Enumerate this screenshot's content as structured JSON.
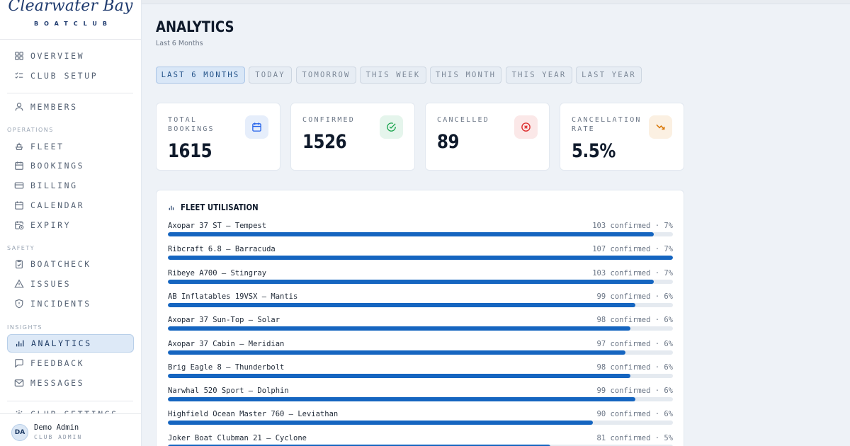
{
  "brand": {
    "title": "Clearwater Bay",
    "subtitle": "BOATCLUB"
  },
  "sidebar": {
    "top_items": [
      {
        "label": "OVERVIEW",
        "icon": "grid-icon"
      },
      {
        "label": "CLUB SETUP",
        "icon": "checklist-icon"
      }
    ],
    "members_item": {
      "label": "MEMBERS",
      "icon": "user-icon"
    },
    "sections": {
      "operations": "OPERATIONS",
      "safety": "SAFETY",
      "insights": "INSIGHTS"
    },
    "operations_items": [
      {
        "label": "FLEET",
        "icon": "ship-icon"
      },
      {
        "label": "BOOKINGS",
        "icon": "calendar-icon"
      },
      {
        "label": "BILLING",
        "icon": "card-icon"
      },
      {
        "label": "CALENDAR",
        "icon": "calendar-icon"
      },
      {
        "label": "EXPIRY",
        "icon": "calendar-clock-icon"
      }
    ],
    "safety_items": [
      {
        "label": "BOATCHECK",
        "icon": "clipboard-check-icon"
      },
      {
        "label": "ISSUES",
        "icon": "warning-triangle-icon"
      },
      {
        "label": "INCIDENTS",
        "icon": "shield-icon"
      }
    ],
    "insights_items": [
      {
        "label": "ANALYTICS",
        "icon": "bar-chart-icon",
        "active": true
      },
      {
        "label": "FEEDBACK",
        "icon": "message-square-icon"
      },
      {
        "label": "MESSAGES",
        "icon": "mail-icon"
      }
    ],
    "settings_item": {
      "label": "CLUB SETTINGS",
      "icon": "gear-icon"
    },
    "user": {
      "initials": "DA",
      "name": "Demo Admin",
      "role": "CLUB ADMIN"
    }
  },
  "header": {
    "title": "ANALYTICS",
    "subtitle": "Last 6 Months"
  },
  "filters": [
    {
      "label": "LAST 6 MONTHS",
      "active": true
    },
    {
      "label": "TODAY"
    },
    {
      "label": "TOMORROW"
    },
    {
      "label": "THIS WEEK"
    },
    {
      "label": "THIS MONTH"
    },
    {
      "label": "THIS YEAR"
    },
    {
      "label": "LAST YEAR"
    }
  ],
  "stats": [
    {
      "label": "TOTAL BOOKINGS",
      "value": "1615",
      "icon": "calendar-icon",
      "color": "#2563eb",
      "bg": "#e6eefb"
    },
    {
      "label": "CONFIRMED",
      "value": "1526",
      "icon": "check-circle-icon",
      "color": "#16a34a",
      "bg": "#e5f5ec"
    },
    {
      "label": "CANCELLED",
      "value": "89",
      "icon": "x-circle-icon",
      "color": "#dc2626",
      "bg": "#fbe8e8"
    },
    {
      "label": "CANCELLATION RATE",
      "value": "5.5%",
      "icon": "trending-down-icon",
      "color": "#d97706",
      "bg": "#fbf0e2"
    }
  ],
  "fleet": {
    "title": "FLEET UTILISATION",
    "rows": [
      {
        "name": "Axopar 37 ST — Tempest",
        "stat": "103 confirmed · 7%",
        "confirmed": 103
      },
      {
        "name": "Ribcraft 6.8 — Barracuda",
        "stat": "107 confirmed · 7%",
        "confirmed": 107
      },
      {
        "name": "Ribeye A700 — Stingray",
        "stat": "103 confirmed · 7%",
        "confirmed": 103
      },
      {
        "name": "AB Inflatables 19VSX — Mantis",
        "stat": "99 confirmed · 6%",
        "confirmed": 99
      },
      {
        "name": "Axopar 37 Sun-Top — Solar",
        "stat": "98 confirmed · 6%",
        "confirmed": 98
      },
      {
        "name": "Axopar 37 Cabin — Meridian",
        "stat": "97 confirmed · 6%",
        "confirmed": 97
      },
      {
        "name": "Brig Eagle 8 — Thunderbolt",
        "stat": "98 confirmed · 6%",
        "confirmed": 98
      },
      {
        "name": "Narwhal 520 Sport — Dolphin",
        "stat": "99 confirmed · 6%",
        "confirmed": 99
      },
      {
        "name": "Highfield Ocean Master 760 — Leviathan",
        "stat": "90 confirmed · 6%",
        "confirmed": 90
      },
      {
        "name": "Joker Boat Clubman 21 — Cyclone",
        "stat": "81 confirmed · 5%",
        "confirmed": 81
      }
    ]
  },
  "colors": {
    "accent": "#1565c0",
    "track": "#e5eaf0"
  }
}
